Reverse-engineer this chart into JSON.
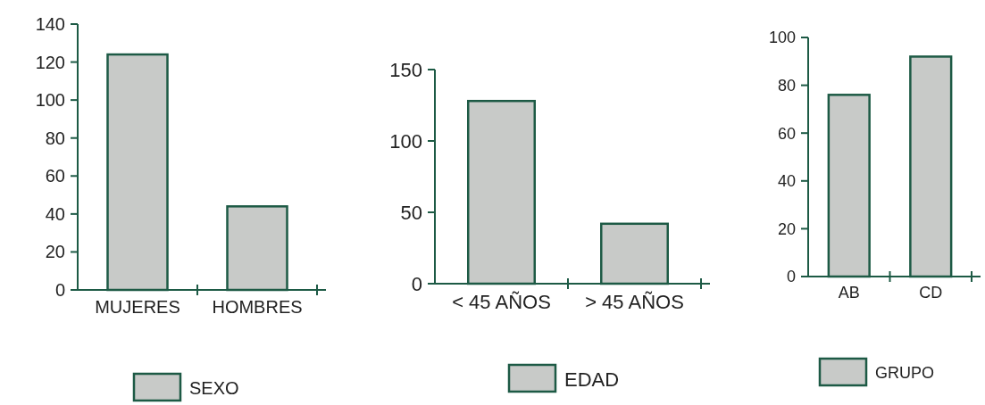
{
  "chart_data": [
    {
      "type": "bar",
      "categories": [
        "MUJERES",
        "HOMBRES"
      ],
      "series": [
        {
          "name": "SEXO",
          "color": "#c8cac8",
          "values": [
            124,
            44
          ]
        }
      ],
      "ylim": [
        0,
        140
      ],
      "yticks": [
        0,
        20,
        40,
        60,
        80,
        100,
        120,
        140
      ],
      "legend": "bottom"
    },
    {
      "type": "bar",
      "categories": [
        "< 45 AÑOS",
        "> 45 AÑOS"
      ],
      "series": [
        {
          "name": "EDAD",
          "color": "#c8cac8",
          "values": [
            128,
            42
          ]
        }
      ],
      "ylim": [
        0,
        150
      ],
      "yticks": [
        0,
        50,
        100,
        150
      ],
      "legend": "bottom"
    },
    {
      "type": "bar",
      "categories": [
        "AB",
        "CD"
      ],
      "series": [
        {
          "name": "GRUPO",
          "color": "#c8cac8",
          "values": [
            76,
            92
          ]
        }
      ],
      "ylim": [
        0,
        100
      ],
      "yticks": [
        0,
        20,
        40,
        60,
        80,
        100
      ],
      "legend": "bottom"
    }
  ]
}
